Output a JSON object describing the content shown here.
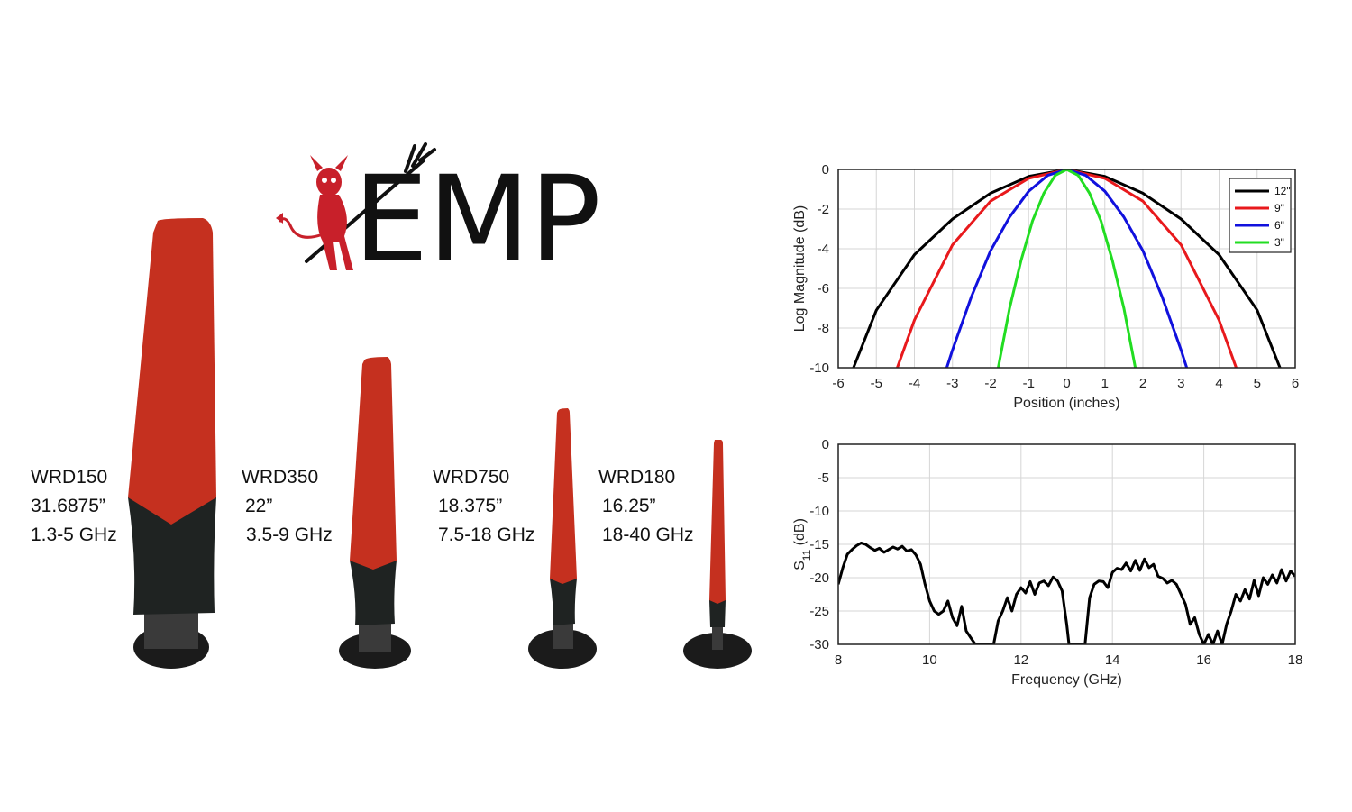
{
  "logo": {
    "text": "EMP",
    "mascot_color": "#c8202a"
  },
  "antennas": [
    {
      "model": "WRD150",
      "length": "31.6875”",
      "band": "1.3-5 GHz"
    },
    {
      "model": "WRD350",
      "length": "22”",
      "band": "3.5-9 GHz"
    },
    {
      "model": "WRD750",
      "length": "18.375”",
      "band": "7.5-18 GHz"
    },
    {
      "model": "WRD180",
      "length": "16.25”",
      "band": "18-40 GHz"
    }
  ],
  "colors": {
    "radome": "#c5301f",
    "base": "#1f2322",
    "stand": "#1b1b1b"
  },
  "chart_data": [
    {
      "type": "line",
      "title": "",
      "xlabel": "Position (inches)",
      "ylabel": "Log Magnitude (dB)",
      "xlim": [
        -6,
        6
      ],
      "ylim": [
        -10,
        0
      ],
      "xticks": [
        -6,
        -5,
        -4,
        -3,
        -2,
        -1,
        0,
        1,
        2,
        3,
        4,
        5,
        6
      ],
      "yticks": [
        0,
        -2,
        -4,
        -6,
        -8,
        -10
      ],
      "grid": true,
      "legend_position": "top-right",
      "series": [
        {
          "name": "12\"",
          "color": "#000000",
          "x": [
            -5.6,
            -5,
            -4,
            -3,
            -2,
            -1,
            0,
            1,
            2,
            3,
            4,
            5,
            5.6
          ],
          "values": [
            -10,
            -7.1,
            -4.3,
            -2.5,
            -1.2,
            -0.35,
            0,
            -0.35,
            -1.2,
            -2.5,
            -4.3,
            -7.1,
            -10
          ]
        },
        {
          "name": "9\"",
          "color": "#e8191c",
          "x": [
            -4.45,
            -4,
            -3,
            -2,
            -1,
            0,
            1,
            2,
            3,
            4,
            4.45
          ],
          "values": [
            -10,
            -7.6,
            -3.8,
            -1.6,
            -0.45,
            0,
            -0.45,
            -1.6,
            -3.8,
            -7.6,
            -10
          ]
        },
        {
          "name": "6\"",
          "color": "#1111dd",
          "x": [
            -3.15,
            -3,
            -2.5,
            -2,
            -1.5,
            -1,
            -0.5,
            0,
            0.5,
            1,
            1.5,
            2,
            2.5,
            3,
            3.15
          ],
          "values": [
            -10,
            -9.1,
            -6.4,
            -4.1,
            -2.4,
            -1.1,
            -0.3,
            0,
            -0.3,
            -1.1,
            -2.4,
            -4.1,
            -6.4,
            -9.1,
            -10
          ]
        },
        {
          "name": "3\"",
          "color": "#22dd22",
          "x": [
            -1.8,
            -1.5,
            -1.2,
            -0.9,
            -0.6,
            -0.3,
            0,
            0.3,
            0.6,
            0.9,
            1.2,
            1.5,
            1.8
          ],
          "values": [
            -10,
            -7,
            -4.6,
            -2.6,
            -1.2,
            -0.3,
            0,
            -0.3,
            -1.2,
            -2.6,
            -4.6,
            -7,
            -10
          ]
        }
      ]
    },
    {
      "type": "line",
      "title": "",
      "xlabel": "Frequency (GHz)",
      "ylabel": "S",
      "ylabel_sub": "11",
      "ylabel_suffix": " (dB)",
      "xlim": [
        8,
        18
      ],
      "ylim": [
        -30,
        0
      ],
      "xticks": [
        8,
        10,
        12,
        14,
        16,
        18
      ],
      "yticks": [
        0,
        -5,
        -10,
        -15,
        -20,
        -25,
        -30
      ],
      "grid": true,
      "series": [
        {
          "name": "",
          "color": "#000000",
          "x": [
            8,
            8.1,
            8.2,
            8.3,
            8.4,
            8.5,
            8.6,
            8.7,
            8.8,
            8.9,
            9,
            9.1,
            9.2,
            9.3,
            9.4,
            9.5,
            9.6,
            9.7,
            9.8,
            9.9,
            10,
            10.1,
            10.2,
            10.3,
            10.4,
            10.5,
            10.6,
            10.7,
            10.8,
            10.9,
            11,
            11.05,
            11.4,
            11.5,
            11.6,
            11.7,
            11.8,
            11.9,
            12,
            12.1,
            12.2,
            12.3,
            12.4,
            12.5,
            12.6,
            12.7,
            12.8,
            12.9,
            13,
            13.05,
            13.1,
            13.4,
            13.5,
            13.6,
            13.7,
            13.8,
            13.9,
            14,
            14.1,
            14.2,
            14.3,
            14.4,
            14.5,
            14.6,
            14.7,
            14.8,
            14.9,
            15,
            15.1,
            15.2,
            15.3,
            15.4,
            15.5,
            15.6,
            15.7,
            15.8,
            15.9,
            16,
            16.1,
            16.2,
            16.3,
            16.4,
            16.5,
            16.6,
            16.7,
            16.8,
            16.9,
            17,
            17.1,
            17.2,
            17.3,
            17.4,
            17.5,
            17.6,
            17.7,
            17.8,
            17.9,
            18
          ],
          "values": [
            -21,
            -18.5,
            -16.5,
            -15.8,
            -15.2,
            -14.8,
            -15,
            -15.5,
            -15.9,
            -15.6,
            -16.2,
            -15.8,
            -15.4,
            -15.7,
            -15.3,
            -16,
            -15.8,
            -16.6,
            -18,
            -21,
            -23.5,
            -25,
            -25.5,
            -25,
            -23.5,
            -26,
            -27.2,
            -24.3,
            -28,
            -29,
            -30,
            -30,
            -30,
            -26.5,
            -25,
            -23,
            -25,
            -22.5,
            -21.5,
            -22.3,
            -20.6,
            -22.5,
            -20.8,
            -20.5,
            -21.2,
            -19.9,
            -20.5,
            -22,
            -27,
            -30,
            -30,
            -30,
            -23,
            -21,
            -20.5,
            -20.6,
            -21.5,
            -19.2,
            -18.6,
            -18.8,
            -17.8,
            -19,
            -17.4,
            -18.9,
            -17.2,
            -18.5,
            -18,
            -19.8,
            -20.1,
            -20.8,
            -20.4,
            -21,
            -22.5,
            -24,
            -27,
            -26,
            -28.5,
            -30,
            -28.5,
            -30,
            -28,
            -30,
            -27,
            -25,
            -22.5,
            -23.5,
            -21.8,
            -23.2,
            -20.4,
            -22.7,
            -20,
            -21,
            -19.6,
            -20.8,
            -18.8,
            -20.5,
            -19,
            -19.8
          ]
        }
      ]
    }
  ]
}
